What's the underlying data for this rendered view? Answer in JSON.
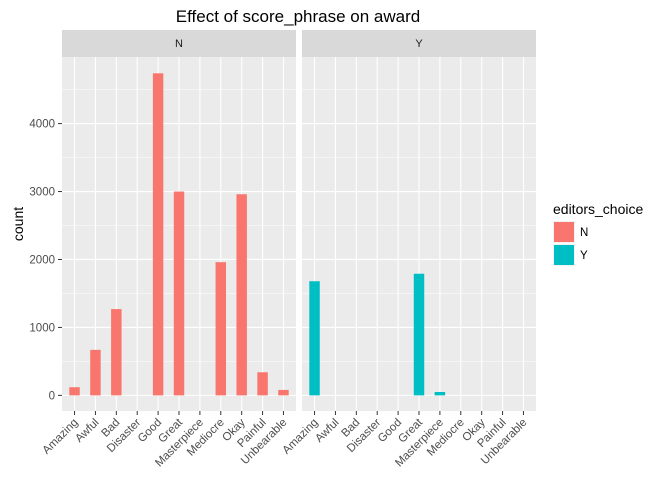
{
  "chart_data": {
    "type": "bar",
    "title": "Effect of score_phrase on award",
    "xlabel": "",
    "ylabel": "count",
    "ylim": [
      -230,
      4980
    ],
    "yticks": [
      0,
      1000,
      2000,
      3000,
      4000
    ],
    "categories": [
      "Amazing",
      "Awful",
      "Bad",
      "Disaster",
      "Good",
      "Great",
      "Masterpiece",
      "Mediocre",
      "Okay",
      "Painful",
      "Unbearable"
    ],
    "grid": true,
    "facets": [
      {
        "label": "N",
        "fill_key": "N",
        "values": [
          120,
          670,
          1270,
          0,
          4740,
          3000,
          0,
          1960,
          2960,
          340,
          80
        ]
      },
      {
        "label": "Y",
        "fill_key": "Y",
        "values": [
          1680,
          0,
          0,
          0,
          0,
          1790,
          50,
          0,
          0,
          0,
          0
        ]
      }
    ],
    "legend": {
      "title": "editors_choice",
      "position": "right",
      "entries": [
        {
          "label": "N",
          "color": "#F8766D"
        },
        {
          "label": "Y",
          "color": "#00BFC4"
        }
      ]
    }
  },
  "colors": {
    "panel_bg": "#EBEBEB",
    "strip_bg": "#D9D9D9",
    "grid_major": "#FFFFFF",
    "tick": "#333333"
  }
}
